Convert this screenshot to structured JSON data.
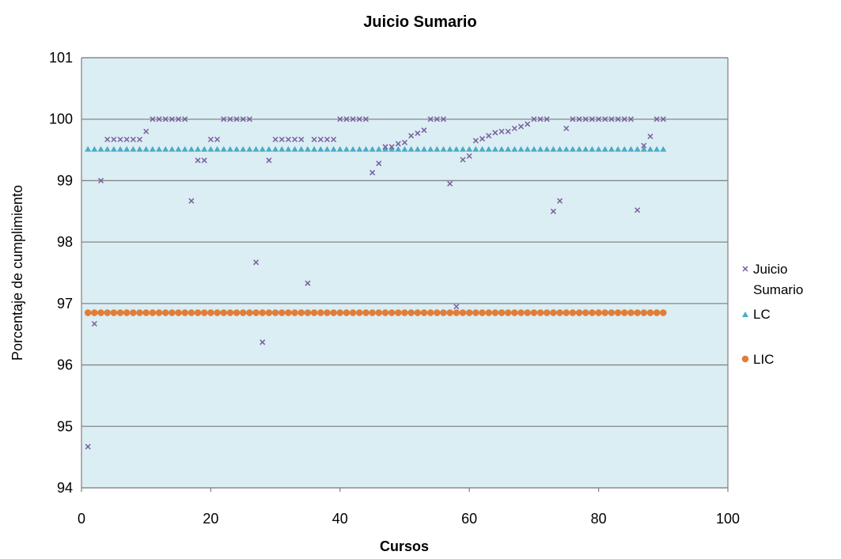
{
  "chart_data": {
    "type": "scatter",
    "title": "Juicio Sumario",
    "xlabel": "Cursos",
    "ylabel": "Porcentaje de cumplimiento",
    "xlim": [
      0,
      100
    ],
    "ylim": [
      94,
      101
    ],
    "x_ticks": [
      "0",
      "20",
      "40",
      "60",
      "80",
      "100"
    ],
    "y_ticks": [
      "94",
      "95",
      "96",
      "97",
      "98",
      "99",
      "100",
      "101"
    ],
    "grid": "horizontal",
    "plot_background": "#dbeef3",
    "legend_position": "right",
    "series": [
      {
        "name": "Juicio Sumario",
        "legend_lines": [
          "Juicio",
          "Sumario"
        ],
        "marker": "x",
        "color": "#7a5fa0",
        "x": [
          1,
          2,
          3,
          4,
          5,
          6,
          7,
          8,
          9,
          10,
          11,
          12,
          13,
          14,
          15,
          16,
          17,
          18,
          19,
          20,
          21,
          22,
          23,
          24,
          25,
          26,
          27,
          28,
          29,
          30,
          31,
          32,
          33,
          34,
          35,
          36,
          37,
          38,
          39,
          40,
          41,
          42,
          43,
          44,
          45,
          46,
          47,
          48,
          49,
          50,
          51,
          52,
          53,
          54,
          55,
          56,
          57,
          58,
          59,
          60,
          61,
          62,
          63,
          64,
          65,
          66,
          67,
          68,
          69,
          70,
          71,
          72,
          73,
          74,
          75,
          76,
          77,
          78,
          79,
          80,
          81,
          82,
          83,
          84,
          85,
          86,
          87,
          88,
          89,
          90
        ],
        "y": [
          94.67,
          96.67,
          99.0,
          99.67,
          99.67,
          99.67,
          99.67,
          99.67,
          99.67,
          99.8,
          100,
          100,
          100,
          100,
          100,
          100,
          98.67,
          99.33,
          99.33,
          99.67,
          99.67,
          100,
          100,
          100,
          100,
          100,
          97.67,
          96.37,
          99.33,
          99.67,
          99.67,
          99.67,
          99.67,
          99.67,
          97.33,
          99.67,
          99.67,
          99.67,
          99.67,
          100,
          100,
          100,
          100,
          100,
          99.13,
          99.28,
          99.55,
          99.55,
          99.6,
          99.62,
          99.73,
          99.77,
          99.82,
          100,
          100,
          100,
          98.95,
          96.95,
          99.34,
          99.4,
          99.65,
          99.68,
          99.73,
          99.78,
          99.8,
          99.8,
          99.85,
          99.88,
          99.92,
          100,
          100,
          100,
          98.5,
          98.67,
          99.85,
          100,
          100,
          100,
          100,
          100,
          100,
          100,
          100,
          100,
          100,
          98.52,
          99.57,
          99.72,
          100,
          100
        ]
      },
      {
        "name": "LC",
        "marker": "triangle",
        "color": "#4bacc6",
        "x_range": [
          1,
          90
        ],
        "value": 99.51
      },
      {
        "name": "LIC",
        "marker": "circle",
        "color": "#e07e39",
        "x_range": [
          1,
          90
        ],
        "value": 96.85
      }
    ]
  }
}
